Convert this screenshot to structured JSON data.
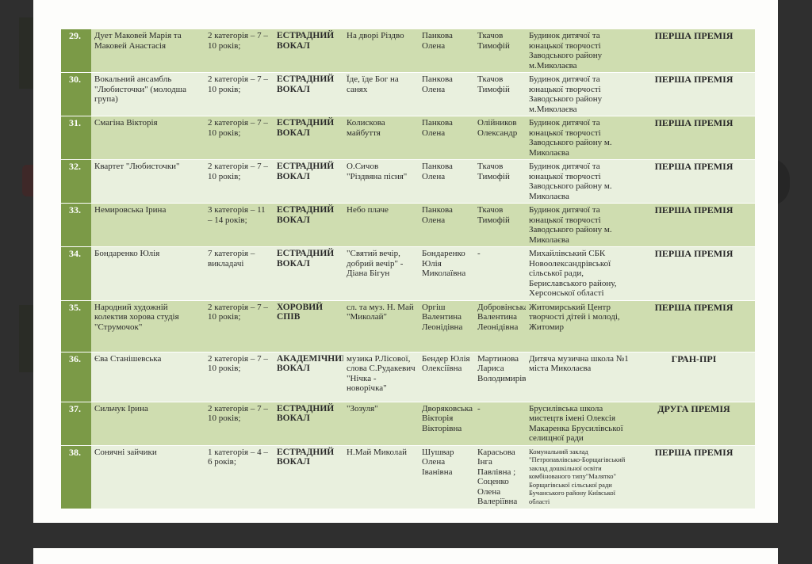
{
  "rows": [
    {
      "num": "29.",
      "name": "Дует Маковей Марія та Маковей Анастасія",
      "category": "2 категорія – 7 – 10 років;",
      "genre": "ЕСТРАДНИЙ ВОКАЛ",
      "song": "На дворі Різдво",
      "teacher": "Панкова Олена",
      "accompanist": "Ткачов Тимофій",
      "institution": "Будинок дитячої та юнацької творчості Заводського району м.Миколаєва",
      "award": "ПЕРША ПРЕМІЯ"
    },
    {
      "num": "30.",
      "name": "Вокальний ансамбль \"Любисточки\" (молодша група)",
      "category": "2 категорія – 7 – 10 років;",
      "genre": "ЕСТРАДНИЙ ВОКАЛ",
      "song": "Їде, їде Бог на санях",
      "teacher": "Панкова Олена",
      "accompanist": "Ткачов Тимофій",
      "institution": "Будинок дитячої та юнацької творчості Заводського району м.Миколаєва",
      "award": "ПЕРША ПРЕМІЯ"
    },
    {
      "num": "31.",
      "name": "Смагіна Вікторія",
      "category": "2 категорія – 7 – 10 років;",
      "genre": "ЕСТРАДНИЙ ВОКАЛ",
      "song": "Колискова майбуття",
      "teacher": "Панкова Олена",
      "accompanist": "Олійников Олександр",
      "institution": "Будинок дитячої та юнацької творчості Заводського району м. Миколаєва",
      "award": "ПЕРША ПРЕМІЯ"
    },
    {
      "num": "32.",
      "name": "Квартет \"Любисточки\"",
      "category": "2 категорія – 7 – 10 років;",
      "genre": "ЕСТРАДНИЙ ВОКАЛ",
      "song": "О.Сичов \"Різдвяна пісня\"",
      "teacher": "Панкова Олена",
      "accompanist": "Ткачов Тимофій",
      "institution": "Будинок дитячої та юнацької творчості Заводського району м. Миколаєва",
      "award": "ПЕРША ПРЕМІЯ"
    },
    {
      "num": "33.",
      "name": "Немировська Ірина",
      "category": "3 категорія – 11 – 14 років;",
      "genre": "ЕСТРАДНИЙ ВОКАЛ",
      "song": "Небо плаче",
      "teacher": "Панкова Олена",
      "accompanist": "Ткачов Тимофій",
      "institution": "Будинок дитячої та юнацької творчості Заводського району м. Миколаєва",
      "award": "ПЕРША ПРЕМІЯ"
    },
    {
      "num": "34.",
      "name": "Бондаренко Юлія",
      "category": "7 категорія – викладачі",
      "genre": "ЕСТРАДНИЙ ВОКАЛ",
      "song": "\"Святий вечір, добрий вечір\" - Діана Бігун",
      "teacher": "Бондаренко Юлія Миколаївна",
      "accompanist": "-",
      "institution": "Михайлівський СБК Новоолександрівської сільської ради, Бериславського району, Херсонської області",
      "award": "ПЕРША ПРЕМІЯ"
    },
    {
      "num": "35.",
      "name": "Народний художній колектив хорова студія \"Струмочок\"",
      "category": "2 категорія – 7 – 10 років;",
      "genre": "ХОРОВИЙ СПІВ",
      "song": "сл. та муз. Н. Май \"Миколай\"",
      "teacher": "Оргіш Валентина Леонідівна",
      "accompanist": "Добровінська Валентина Леонідівна",
      "institution": "Житомирський Центр творчості дітей і молоді, Житомир",
      "award": "ПЕРША ПРЕМІЯ"
    },
    {
      "num": "36.",
      "name": "Єва Станішевська",
      "category": "2 категорія – 7 – 10 років;",
      "genre": "АКАДЕМІЧНИЙ ВОКАЛ",
      "song": "музика Р.Лісової, слова С.Рудакевич \"Нічка - новорічка\"",
      "teacher": "Бендер Юлія Олексіївна",
      "accompanist": "Мартинова Лариса Володимирівна",
      "institution": "Дитяча музична школа №1 міста Миколаєва",
      "award": "ГРАН-ПРІ"
    },
    {
      "num": "37.",
      "name": "Сильчук Ірина",
      "category": "2 категорія – 7 – 10 років;",
      "genre": "ЕСТРАДНИЙ ВОКАЛ",
      "song": "\"Зозуля\"",
      "teacher": "Дворяковська Вікторія Вікторівна",
      "accompanist": "-",
      "institution": "Брусилівська школа мистецтв імені Олексія Макаренка Брусилівської селищної ради",
      "award": "ДРУГА ПРЕМІЯ"
    },
    {
      "num": "38.",
      "name": "Сонячні зайчики",
      "category": "1 категорія – 4 – 6 років;",
      "genre": "ЕСТРАДНИЙ ВОКАЛ",
      "song": "Н.Май Миколай",
      "teacher": "Шушвар Олена Іванівна",
      "accompanist": "Карасьова Інга Павлівна ; Соценко Олена Валеріївна",
      "institution": "Комунальний заклад \"Петропавлівсько-Борщагівський заклад дошкільної освіти комбінованого типу\"Малятко\" Борщагівської сільської ради Бучанського району Київської області",
      "award": "ПЕРША ПРЕМІЯ"
    }
  ]
}
